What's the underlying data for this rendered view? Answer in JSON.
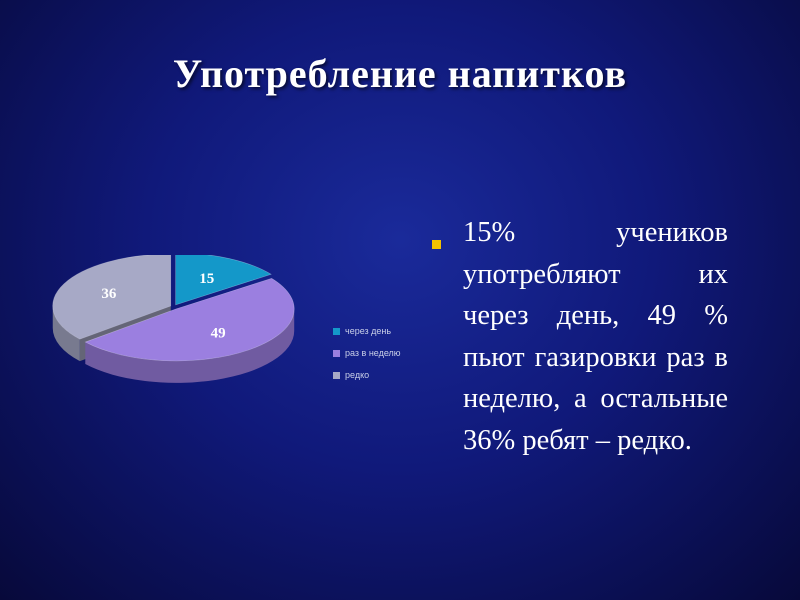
{
  "slide": {
    "title": "Употребление напитков",
    "body_text": "15% учеников употребляют их через день, 49 % пьют газировки раз в неделю, а остальные 36% ребят – редко."
  },
  "chart_data": {
    "type": "pie",
    "categories": [
      "через день",
      "раз в неделю",
      "редко"
    ],
    "values": [
      15,
      49,
      36
    ],
    "colors": [
      "#1498c9",
      "#9b7fe0",
      "#a7a9c6"
    ],
    "data_labels": [
      "15",
      "49",
      "36"
    ],
    "legend_position": "right",
    "style": "3d"
  }
}
